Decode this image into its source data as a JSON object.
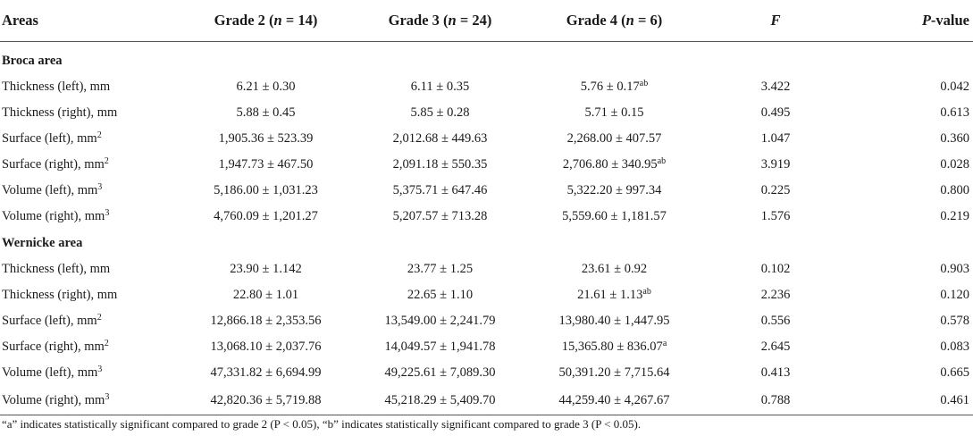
{
  "header": {
    "areas": "Areas",
    "grade2_label": "Grade 2 (",
    "grade2_n": "n",
    "grade2_count": " = 14)",
    "grade3_label": "Grade 3 (",
    "grade3_n": "n",
    "grade3_count": " = 24)",
    "grade4_label": "Grade 4 (",
    "grade4_n": "n",
    "grade4_count": " = 6)",
    "f": "F",
    "p_italic": "P",
    "p_rest": "-value"
  },
  "sections": [
    {
      "title": "Broca area",
      "rows": [
        {
          "label": "Thickness (left), mm",
          "unit_sup": "",
          "g2": "6.21 ± 0.30",
          "g3": "6.11 ± 0.35",
          "g4": "5.76 ± 0.17",
          "g4_sup": "ab",
          "f": "3.422",
          "p": "0.042"
        },
        {
          "label": "Thickness (right), mm",
          "unit_sup": "",
          "g2": "5.88 ± 0.45",
          "g3": "5.85 ± 0.28",
          "g4": "5.71 ± 0.15",
          "g4_sup": "",
          "f": "0.495",
          "p": "0.613"
        },
        {
          "label": "Surface (left), mm",
          "unit_sup": "2",
          "g2": "1,905.36 ± 523.39",
          "g3": "2,012.68 ± 449.63",
          "g4": "2,268.00 ± 407.57",
          "g4_sup": "",
          "f": "1.047",
          "p": "0.360"
        },
        {
          "label": "Surface (right), mm",
          "unit_sup": "2",
          "g2": "1,947.73 ± 467.50",
          "g3": "2,091.18 ± 550.35",
          "g4": "2,706.80 ± 340.95",
          "g4_sup": "ab",
          "f": "3.919",
          "p": "0.028"
        },
        {
          "label": "Volume (left), mm",
          "unit_sup": "3",
          "g2": "5,186.00 ± 1,031.23",
          "g3": "5,375.71 ± 647.46",
          "g4": "5,322.20 ± 997.34",
          "g4_sup": "",
          "f": "0.225",
          "p": "0.800"
        },
        {
          "label": "Volume (right), mm",
          "unit_sup": "3",
          "g2": "4,760.09 ± 1,201.27",
          "g3": "5,207.57 ± 713.28",
          "g4": "5,559.60 ± 1,181.57",
          "g4_sup": "",
          "f": "1.576",
          "p": "0.219"
        }
      ]
    },
    {
      "title": "Wernicke area",
      "rows": [
        {
          "label": "Thickness (left), mm",
          "unit_sup": "",
          "g2": "23.90 ± 1.142",
          "g3": "23.77 ± 1.25",
          "g4": "23.61 ± 0.92",
          "g4_sup": "",
          "f": "0.102",
          "p": "0.903"
        },
        {
          "label": "Thickness (right), mm",
          "unit_sup": "",
          "g2": "22.80 ± 1.01",
          "g3": "22.65 ± 1.10",
          "g4": "21.61 ± 1.13",
          "g4_sup": "ab",
          "f": "2.236",
          "p": "0.120"
        },
        {
          "label": "Surface (left), mm",
          "unit_sup": "2",
          "g2": "12,866.18 ± 2,353.56",
          "g3": "13,549.00 ± 2,241.79",
          "g4": "13,980.40 ± 1,447.95",
          "g4_sup": "",
          "f": "0.556",
          "p": "0.578"
        },
        {
          "label": "Surface (right), mm",
          "unit_sup": "2",
          "g2": "13,068.10 ± 2,037.76",
          "g3": "14,049.57 ± 1,941.78",
          "g4": "15,365.80 ± 836.07",
          "g4_sup": "a",
          "f": "2.645",
          "p": "0.083"
        },
        {
          "label": "Volume (left), mm",
          "unit_sup": "3",
          "g2": "47,331.82 ± 6,694.99",
          "g3": "49,225.61 ± 7,089.30",
          "g4": "50,391.20 ± 7,715.64",
          "g4_sup": "",
          "f": "0.413",
          "p": "0.665"
        },
        {
          "label": "Volume (right), mm",
          "unit_sup": "3",
          "g2": "42,820.36 ± 5,719.88",
          "g3": "45,218.29 ± 5,409.70",
          "g4": "44,259.40 ± 4,267.67",
          "g4_sup": "",
          "f": "0.788",
          "p": "0.461"
        }
      ]
    }
  ],
  "footnote": "“a” indicates statistically significant compared to grade 2 (P < 0.05), “b” indicates statistically significant compared to grade 3 (P < 0.05)."
}
